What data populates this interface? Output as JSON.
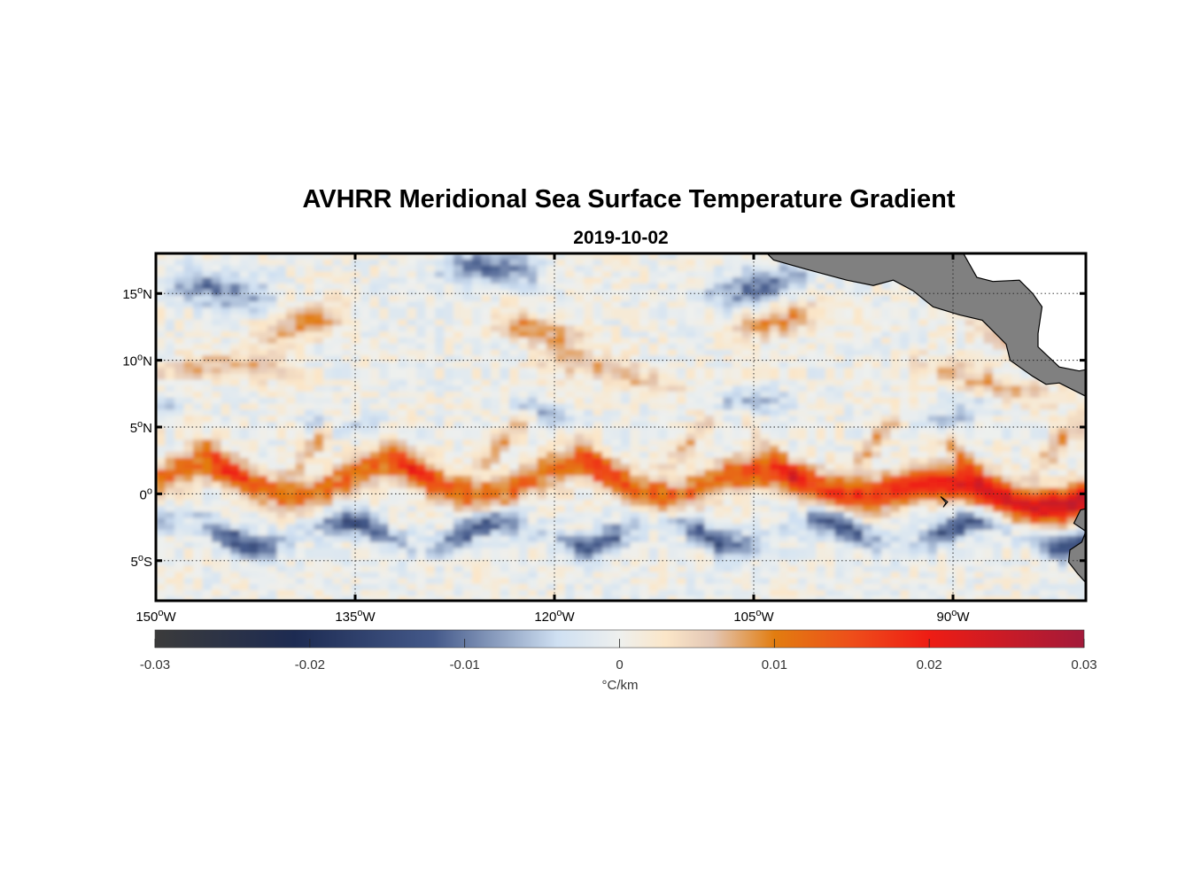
{
  "figure": {
    "title": "AVHRR Meridional Sea Surface Temperature Gradient",
    "subtitle": "2019-10-02"
  },
  "map": {
    "lon_range": [
      -150,
      -80
    ],
    "lat_range": [
      -8,
      18
    ],
    "lat_ticks": [
      {
        "value": 15,
        "num": "15",
        "suffix": "N"
      },
      {
        "value": 10,
        "num": "10",
        "suffix": "N"
      },
      {
        "value": 5,
        "num": "5",
        "suffix": "N"
      },
      {
        "value": 0,
        "num": "0",
        "suffix": ""
      },
      {
        "value": -5,
        "num": "5",
        "suffix": "S"
      }
    ],
    "lon_ticks": [
      {
        "value": -150,
        "num": "150",
        "suffix": "W"
      },
      {
        "value": -135,
        "num": "135",
        "suffix": "W"
      },
      {
        "value": -120,
        "num": "120",
        "suffix": "W"
      },
      {
        "value": -105,
        "num": "105",
        "suffix": "W"
      },
      {
        "value": -90,
        "num": "90",
        "suffix": "W"
      }
    ],
    "degree_symbol": "o",
    "land_color": "#808080",
    "grid_style": "dotted"
  },
  "colorbar": {
    "label": "°C/km",
    "ticks": [
      "-0.03",
      "-0.02",
      "-0.01",
      "0",
      "0.01",
      "0.02",
      "0.03"
    ],
    "tick_values": [
      -0.03,
      -0.02,
      -0.01,
      0,
      0.01,
      0.02,
      0.03
    ],
    "stops": [
      {
        "v": -0.03,
        "color": "#3b3b3b"
      },
      {
        "v": -0.021,
        "color": "#1d2b52"
      },
      {
        "v": -0.012,
        "color": "#44598a"
      },
      {
        "v": -0.004,
        "color": "#cfe0f2"
      },
      {
        "v": 0.0,
        "color": "#eef0ee"
      },
      {
        "v": 0.003,
        "color": "#fbe6c8"
      },
      {
        "v": 0.006,
        "color": "#e3c7b5"
      },
      {
        "v": 0.01,
        "color": "#e27d10"
      },
      {
        "v": 0.015,
        "color": "#ee4e1a"
      },
      {
        "v": 0.02,
        "color": "#ee1c14"
      },
      {
        "v": 0.03,
        "color": "#a31a3a"
      }
    ]
  },
  "chart_data": {
    "type": "heatmap",
    "title": "AVHRR Meridional Sea Surface Temperature Gradient",
    "subtitle": "2019-10-02",
    "x": "longitude (150°W to 80°W)",
    "y": "latitude (8°S to 18°N)",
    "variable": "meridional SST gradient",
    "units": "°C/km",
    "clim": [
      -0.03,
      0.03
    ],
    "features": [
      {
        "name": "equatorial tropical instability wave front",
        "sign": "positive",
        "lat_range": [
          -2,
          5
        ],
        "lon_range": [
          -150,
          -80
        ],
        "peak_value": 0.03,
        "peak_lon": -85,
        "peak_lat": -1.5
      },
      {
        "name": "southern negative gradient band",
        "sign": "negative",
        "lat_range": [
          -6,
          -1
        ],
        "lon_range": [
          -150,
          -85
        ],
        "typical_value": -0.015
      },
      {
        "name": "northern fronts",
        "sign": "mixed",
        "lat_range": [
          8,
          17
        ],
        "lon_range": [
          -150,
          -80
        ],
        "typical_value": 0.01
      }
    ]
  }
}
